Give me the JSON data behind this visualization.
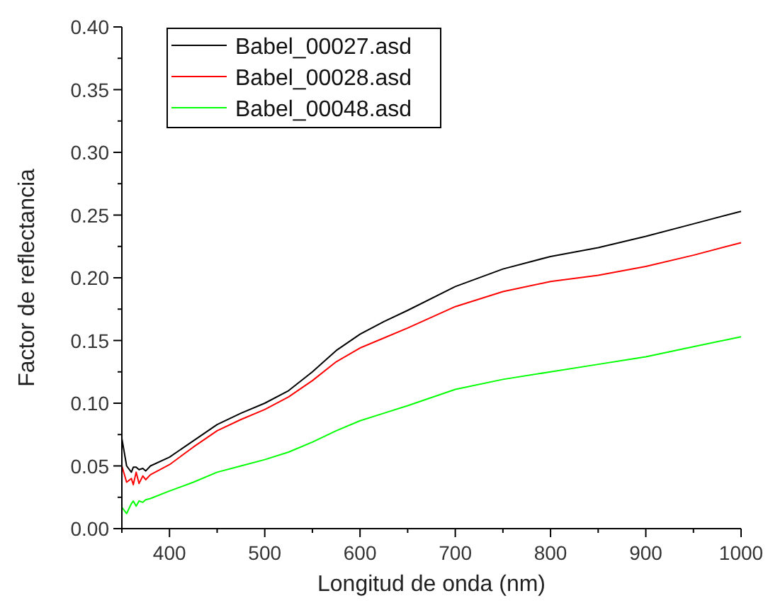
{
  "chart_data": {
    "type": "line",
    "xlabel": "Longitud de onda (nm)",
    "ylabel": "Factor de reflectancia",
    "xlim": [
      350,
      1000
    ],
    "ylim": [
      0,
      0.4
    ],
    "xticks": [
      {
        "value": 350,
        "label": null
      },
      400,
      {
        "value": 450,
        "label": null
      },
      500,
      {
        "value": 550,
        "label": null
      },
      600,
      {
        "value": 650,
        "label": null
      },
      700,
      {
        "value": 750,
        "label": null
      },
      800,
      {
        "value": 850,
        "label": null
      },
      900,
      {
        "value": 950,
        "label": null
      },
      1000
    ],
    "yticks": [
      "0.00",
      {
        "value": 0.025,
        "label": null
      },
      {
        "value": 0.05,
        "label": "0.05"
      },
      {
        "value": 0.075,
        "label": null
      },
      {
        "value": 0.1,
        "label": "0.10"
      },
      {
        "value": 0.125,
        "label": null
      },
      {
        "value": 0.15,
        "label": "0.15"
      },
      {
        "value": 0.175,
        "label": null
      },
      {
        "value": 0.2,
        "label": "0.20"
      },
      {
        "value": 0.225,
        "label": null
      },
      {
        "value": 0.25,
        "label": "0.25"
      },
      {
        "value": 0.275,
        "label": null
      },
      {
        "value": 0.3,
        "label": "0.30"
      },
      {
        "value": 0.325,
        "label": null
      },
      {
        "value": 0.35,
        "label": "0.35"
      },
      {
        "value": 0.375,
        "label": null
      },
      {
        "value": 0.4,
        "label": "0.40"
      }
    ],
    "grid": false,
    "legend": "top left",
    "line_style": "solid",
    "x": [
      350,
      355,
      360,
      362,
      365,
      368,
      372,
      375,
      380,
      400,
      425,
      450,
      475,
      500,
      525,
      550,
      575,
      600,
      625,
      650,
      700,
      750,
      800,
      850,
      900,
      950,
      1000
    ],
    "series": [
      {
        "name": "Babel_00027.asd",
        "color": "#000000",
        "values": [
          0.072,
          0.05,
          0.045,
          0.049,
          0.049,
          0.047,
          0.048,
          0.046,
          0.05,
          0.057,
          0.07,
          0.083,
          0.092,
          0.1,
          0.11,
          0.125,
          0.142,
          0.155,
          0.165,
          0.174,
          0.193,
          0.207,
          0.217,
          0.224,
          0.233,
          0.243,
          0.253
        ]
      },
      {
        "name": "Babel_00028.asd",
        "color": "#ff0000",
        "values": [
          0.05,
          0.037,
          0.04,
          0.035,
          0.045,
          0.036,
          0.042,
          0.039,
          0.043,
          0.051,
          0.065,
          0.078,
          0.087,
          0.095,
          0.105,
          0.118,
          0.133,
          0.144,
          0.152,
          0.16,
          0.177,
          0.189,
          0.197,
          0.202,
          0.209,
          0.218,
          0.228
        ]
      },
      {
        "name": "Babel_00048.asd",
        "color": "#00ff00",
        "values": [
          0.017,
          0.012,
          0.02,
          0.022,
          0.018,
          0.022,
          0.021,
          0.023,
          0.024,
          0.03,
          0.037,
          0.045,
          0.05,
          0.055,
          0.061,
          0.069,
          0.078,
          0.086,
          0.092,
          0.098,
          0.111,
          0.119,
          0.125,
          0.131,
          0.137,
          0.145,
          0.153
        ]
      }
    ]
  }
}
